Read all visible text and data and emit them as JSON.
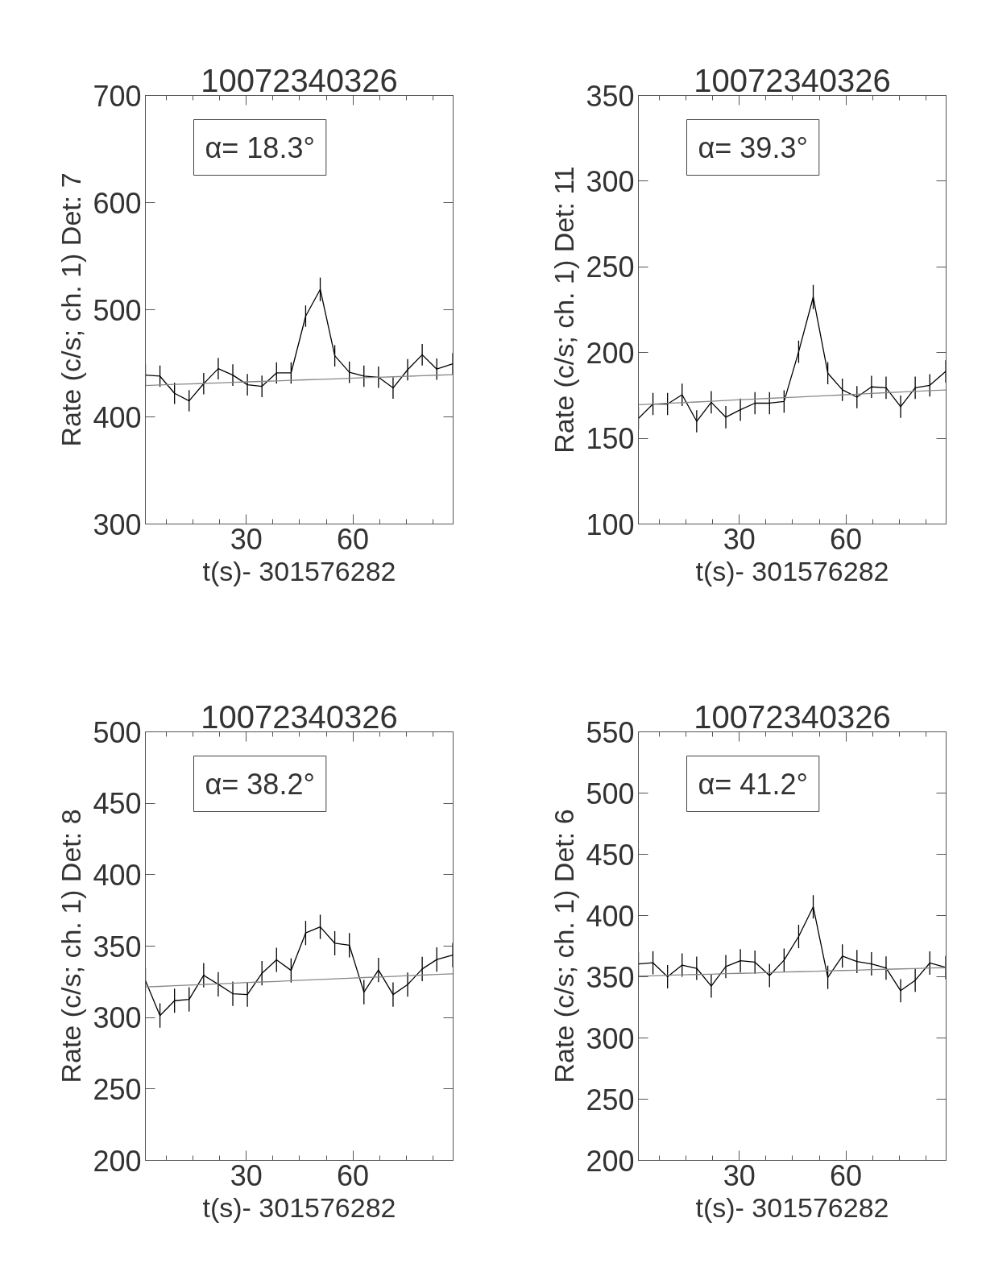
{
  "chart_data": [
    {
      "type": "line",
      "title": "10072340326",
      "xlabel": "t(s)- 301576282",
      "ylabel": "Rate (c/s; ch. 1) Det: 7",
      "annotations": [
        "α= 18.3°"
      ],
      "grid": false,
      "x": [
        1.6,
        5.7,
        9.8,
        13.9,
        18.0,
        22.1,
        26.2,
        30.3,
        34.4,
        38.5,
        42.6,
        46.7,
        50.8,
        54.9,
        59.0,
        63.1,
        67.2,
        71.3,
        75.4,
        79.5,
        83.6,
        88.1
      ],
      "xlim": [
        1.6,
        88.2
      ],
      "xticks": [
        {
          "value": 7.5,
          "label": null
        },
        {
          "value": 15,
          "label": null
        },
        {
          "value": 22.5,
          "label": null
        },
        30,
        {
          "value": 37.5,
          "label": null
        },
        {
          "value": 45,
          "label": null
        },
        {
          "value": 52.5,
          "label": null
        },
        60,
        {
          "value": 67.5,
          "label": null
        },
        {
          "value": 75,
          "label": null
        },
        {
          "value": 82.5,
          "label": null
        }
      ],
      "ylim": [
        300,
        700
      ],
      "yticks": [
        300,
        400,
        500,
        600,
        700
      ],
      "series": [
        {
          "color": "#000000",
          "values": [
            439,
            438,
            422,
            415,
            431,
            445,
            439,
            430,
            428.5,
            441,
            441,
            494,
            519,
            457,
            441.6,
            438,
            437,
            427,
            444,
            458,
            444.6,
            449.5
          ],
          "errors": [
            10,
            10,
            10,
            10,
            10,
            10,
            10,
            10,
            10,
            10,
            10,
            10,
            11,
            10,
            10,
            10,
            10,
            10,
            10,
            10,
            10,
            10
          ]
        },
        {
          "type": "line",
          "color": "#888888",
          "values": [
            429.3,
            429.8,
            430.3,
            430.7,
            431.2,
            431.7,
            432.2,
            432.7,
            433.1,
            433.6,
            434.1,
            434.6,
            435.0,
            435.5,
            436.0,
            436.5,
            437.0,
            437.4,
            437.9,
            438.4,
            438.9,
            439.4
          ]
        }
      ]
    },
    {
      "type": "line",
      "title": "10072340326",
      "xlabel": "t(s)- 301576282",
      "ylabel": "Rate (c/s; ch. 1) Det: 11",
      "annotations": [
        "α= 39.3°"
      ],
      "grid": false,
      "x": [
        1.6,
        5.7,
        9.8,
        13.9,
        18.0,
        22.1,
        26.2,
        30.3,
        34.4,
        38.5,
        42.6,
        46.7,
        50.8,
        54.9,
        59.0,
        63.1,
        67.2,
        71.3,
        75.4,
        79.5,
        83.6,
        88.1
      ],
      "xlim": [
        1.6,
        88.2
      ],
      "xticks": [
        {
          "value": 7.5,
          "label": null
        },
        {
          "value": 15,
          "label": null
        },
        {
          "value": 22.5,
          "label": null
        },
        30,
        {
          "value": 37.5,
          "label": null
        },
        {
          "value": 45,
          "label": null
        },
        {
          "value": 52.5,
          "label": null
        },
        60,
        {
          "value": 67.5,
          "label": null
        },
        {
          "value": 75,
          "label": null
        },
        {
          "value": 82.5,
          "label": null
        }
      ],
      "ylim": [
        100,
        350
      ],
      "yticks": [
        100,
        150,
        200,
        250,
        300,
        350
      ],
      "series": [
        {
          "color": "#000000",
          "values": [
            161.6,
            170,
            170,
            175.4,
            159.9,
            171,
            162.3,
            166.7,
            170.5,
            170.5,
            171.5,
            200.5,
            232.4,
            188,
            178.3,
            174,
            180,
            179.5,
            168.4,
            179.5,
            180.9,
            189
          ],
          "errors": [
            6.5,
            6.5,
            6.5,
            6.5,
            6.5,
            6.5,
            6.5,
            6.5,
            6.5,
            6.5,
            6.5,
            6.5,
            7,
            6.5,
            6.5,
            6.5,
            6.5,
            6.5,
            6.5,
            6.5,
            6.5,
            6.5
          ]
        },
        {
          "type": "line",
          "color": "#888888",
          "values": [
            169.6,
            170.0,
            170.4,
            170.8,
            171.2,
            171.6,
            172.1,
            172.5,
            172.9,
            173.3,
            173.7,
            174.1,
            174.5,
            174.9,
            175.3,
            175.7,
            176.2,
            176.6,
            177.0,
            177.4,
            177.8,
            178.2
          ]
        }
      ]
    },
    {
      "type": "line",
      "title": "10072340326",
      "xlabel": "t(s)- 301576282",
      "ylabel": "Rate (c/s; ch. 1) Det: 8",
      "annotations": [
        "α= 38.2°"
      ],
      "grid": false,
      "x": [
        1.6,
        5.7,
        9.8,
        13.9,
        18.0,
        22.1,
        26.2,
        30.3,
        34.4,
        38.5,
        42.6,
        46.7,
        50.8,
        54.9,
        59.0,
        63.1,
        67.2,
        71.3,
        75.4,
        79.5,
        83.6,
        88.1
      ],
      "xlim": [
        1.6,
        88.2
      ],
      "xticks": [
        {
          "value": 7.5,
          "label": null
        },
        {
          "value": 15,
          "label": null
        },
        {
          "value": 22.5,
          "label": null
        },
        30,
        {
          "value": 37.5,
          "label": null
        },
        {
          "value": 45,
          "label": null
        },
        {
          "value": 52.5,
          "label": null
        },
        60,
        {
          "value": 67.5,
          "label": null
        },
        {
          "value": 75,
          "label": null
        },
        {
          "value": 82.5,
          "label": null
        }
      ],
      "ylim": [
        200,
        500
      ],
      "yticks": [
        200,
        250,
        300,
        350,
        400,
        450,
        500
      ],
      "series": [
        {
          "color": "#000000",
          "values": [
            325.9,
            301.4,
            311.8,
            312.7,
            329.6,
            323.3,
            316.7,
            316.1,
            331,
            340.4,
            333,
            359.2,
            363.5,
            352,
            350.6,
            317.8,
            333.3,
            316.1,
            323.1,
            334,
            340.6,
            343.7
          ],
          "errors": [
            8.5,
            8.5,
            8.5,
            8.5,
            8.5,
            8.5,
            8.5,
            8.5,
            8.5,
            8.5,
            8.5,
            8.5,
            8.5,
            8.5,
            8.5,
            8.5,
            8.5,
            8.5,
            8.5,
            8.5,
            8.5,
            8.5
          ]
        },
        {
          "type": "line",
          "color": "#888888",
          "values": [
            321.4,
            321.8,
            322.3,
            322.7,
            323.2,
            323.6,
            324.0,
            324.5,
            324.9,
            325.3,
            325.8,
            326.2,
            326.7,
            327.1,
            327.5,
            328.0,
            328.4,
            328.8,
            329.3,
            329.7,
            330.2,
            330.6
          ]
        }
      ]
    },
    {
      "type": "line",
      "title": "10072340326",
      "xlabel": "t(s)- 301576282",
      "ylabel": "Rate (c/s; ch. 1) Det: 6",
      "annotations": [
        "α= 41.2°"
      ],
      "grid": false,
      "x": [
        1.6,
        5.7,
        9.8,
        13.9,
        18.0,
        22.1,
        26.2,
        30.3,
        34.4,
        38.5,
        42.6,
        46.7,
        50.8,
        54.9,
        59.0,
        63.1,
        67.2,
        71.3,
        75.4,
        79.5,
        83.6,
        88.1
      ],
      "xlim": [
        1.6,
        88.2
      ],
      "xticks": [
        {
          "value": 7.5,
          "label": null
        },
        {
          "value": 15,
          "label": null
        },
        {
          "value": 22.5,
          "label": null
        },
        30,
        {
          "value": 37.5,
          "label": null
        },
        {
          "value": 45,
          "label": null
        },
        {
          "value": 52.5,
          "label": null
        },
        60,
        {
          "value": 67.5,
          "label": null
        },
        {
          "value": 75,
          "label": null
        },
        {
          "value": 82.5,
          "label": null
        }
      ],
      "ylim": [
        200,
        550
      ],
      "yticks": [
        200,
        250,
        300,
        350,
        400,
        450,
        500,
        550
      ],
      "series": [
        {
          "color": "#000000",
          "values": [
            360.5,
            361.4,
            350,
            359.5,
            356.9,
            342.4,
            358.3,
            363.1,
            361.9,
            351,
            363.6,
            382.9,
            407.1,
            349.5,
            366.9,
            362.4,
            360.5,
            357.1,
            338.6,
            347.1,
            361.2,
            357.6
          ],
          "errors": [
            9.5,
            9.5,
            9.5,
            9.5,
            9.5,
            9.5,
            9.5,
            9.5,
            9.5,
            9.5,
            9.5,
            9.5,
            9.5,
            9.5,
            9.5,
            9.5,
            9.5,
            9.5,
            9.5,
            9.5,
            9.5,
            9.5
          ]
        },
        {
          "type": "line",
          "color": "#888888",
          "values": [
            350.5,
            350.8,
            351.2,
            351.5,
            351.8,
            352.1,
            352.5,
            352.8,
            353.1,
            353.5,
            353.8,
            354.1,
            354.4,
            354.8,
            355.1,
            355.4,
            355.8,
            356.1,
            356.4,
            356.7,
            357.1,
            357.4
          ]
        }
      ]
    }
  ]
}
